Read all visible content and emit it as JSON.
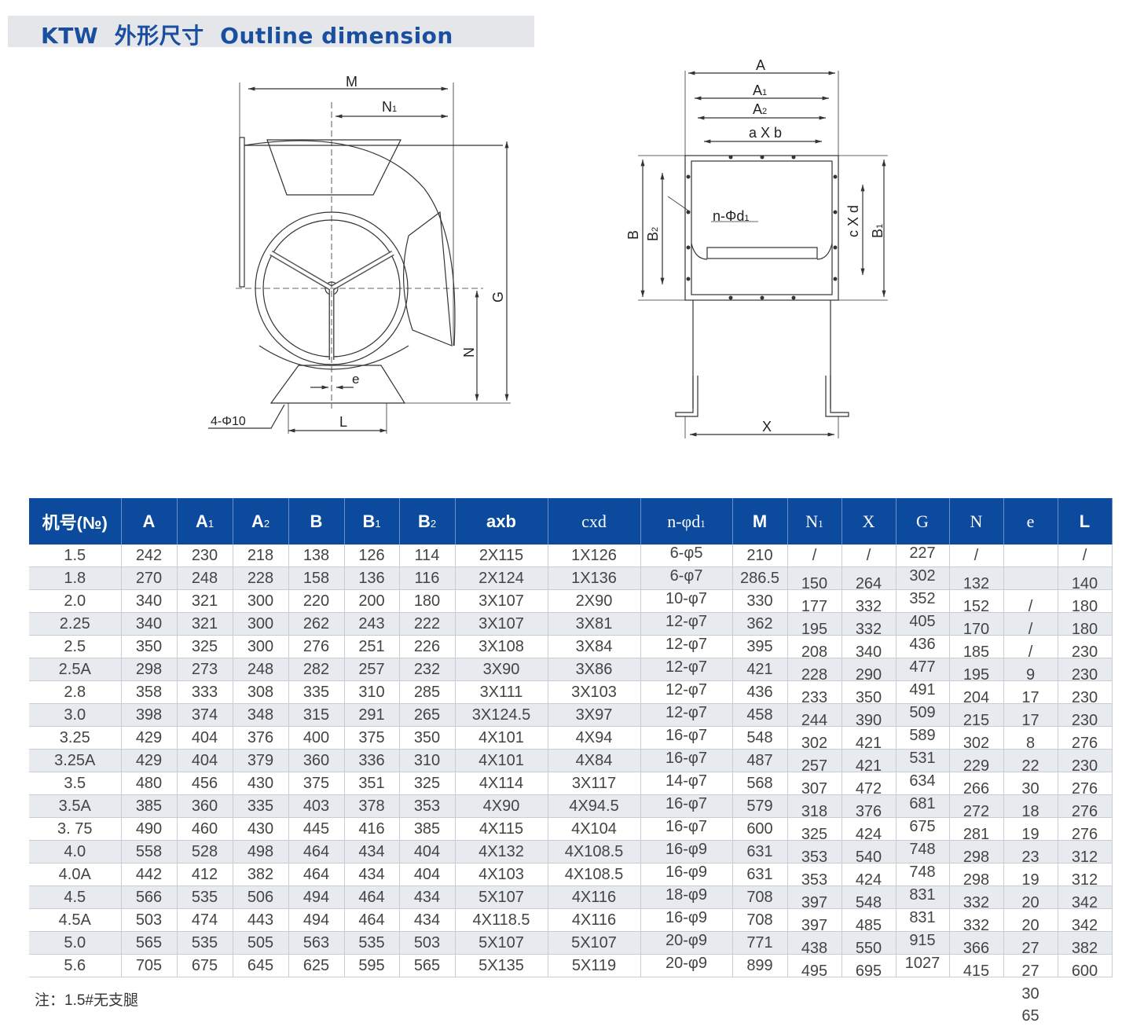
{
  "title": "KTW  外形尺寸  Outline dimension",
  "colors": {
    "accent": "#0b4a9c",
    "title_text": "#1a4fa0",
    "row_alt": "#e7eaee"
  },
  "side_view_labels": {
    "M": "M",
    "N1": "N",
    "N1_sub": "1",
    "G": "G",
    "N": "N",
    "e": "e",
    "L": "L",
    "holes": "4-Φ10"
  },
  "front_view_labels": {
    "A": "A",
    "A1": "A",
    "A1_sub": "1",
    "A2": "A",
    "A2_sub": "2",
    "axb": "a X b",
    "B": "B",
    "B2": "B",
    "B2_sub": "2",
    "cxd": "c X d",
    "B1": "B",
    "B1_sub": "1",
    "nd": "n-Φd",
    "nd_sub": "1",
    "X": "X"
  },
  "table": {
    "headers": [
      {
        "t": "机号(№)"
      },
      {
        "t": "A"
      },
      {
        "t": "A",
        "s": "1"
      },
      {
        "t": "A",
        "s": "2"
      },
      {
        "t": "B"
      },
      {
        "t": "B",
        "s": "1"
      },
      {
        "t": "B",
        "s": "2"
      },
      {
        "t": "axb"
      },
      {
        "t": "cxd",
        "serif": true
      },
      {
        "t": "n-φd",
        "s": "1",
        "serif": true
      },
      {
        "t": "M"
      },
      {
        "t": "N",
        "s": "1",
        "serif": true
      },
      {
        "t": "X",
        "serif": true
      },
      {
        "t": "G",
        "serif": true
      },
      {
        "t": "N",
        "serif": true
      },
      {
        "t": "e",
        "serif": true
      },
      {
        "t": "L"
      }
    ],
    "rows": [
      [
        "1.5",
        "242",
        "230",
        "218",
        "138",
        "126",
        "114",
        "2X115",
        "1X126",
        "6-φ5",
        "210",
        "/",
        "/",
        "227",
        "/",
        "",
        "/"
      ],
      [
        "1.8",
        "270",
        "248",
        "228",
        "158",
        "136",
        "116",
        "2X124",
        "1X136",
        "6-φ7",
        "286.5",
        "150",
        "264",
        "302",
        "132",
        "",
        "140"
      ],
      [
        "2.0",
        "340",
        "321",
        "300",
        "220",
        "200",
        "180",
        "3X107",
        "2X90",
        "10-φ7",
        "330",
        "177",
        "332",
        "352",
        "152",
        "/",
        "180"
      ],
      [
        "2.25",
        "340",
        "321",
        "300",
        "262",
        "243",
        "222",
        "3X107",
        "3X81",
        "12-φ7",
        "362",
        "195",
        "332",
        "405",
        "170",
        "/",
        "180"
      ],
      [
        "2.5",
        "350",
        "325",
        "300",
        "276",
        "251",
        "226",
        "3X108",
        "3X84",
        "12-φ7",
        "395",
        "208",
        "340",
        "436",
        "185",
        "/",
        "230"
      ],
      [
        "2.5A",
        "298",
        "273",
        "248",
        "282",
        "257",
        "232",
        "3X90",
        "3X86",
        "12-φ7",
        "421",
        "228",
        "290",
        "477",
        "195",
        "9",
        "230"
      ],
      [
        "2.8",
        "358",
        "333",
        "308",
        "335",
        "310",
        "285",
        "3X111",
        "3X103",
        "12-φ7",
        "436",
        "233",
        "350",
        "491",
        "204",
        "17",
        "230"
      ],
      [
        "3.0",
        "398",
        "374",
        "348",
        "315",
        "291",
        "265",
        "3X124.5",
        "3X97",
        "12-φ7",
        "458",
        "244",
        "390",
        "509",
        "215",
        "17",
        "230"
      ],
      [
        "3.25",
        "429",
        "404",
        "376",
        "400",
        "375",
        "350",
        "4X101",
        "4X94",
        "16-φ7",
        "548",
        "302",
        "421",
        "589",
        "302",
        "8",
        "276"
      ],
      [
        "3.25A",
        "429",
        "404",
        "379",
        "360",
        "336",
        "310",
        "4X101",
        "4X84",
        "16-φ7",
        "487",
        "257",
        "421",
        "531",
        "229",
        "22",
        "230"
      ],
      [
        "3.5",
        "480",
        "456",
        "430",
        "375",
        "351",
        "325",
        "4X114",
        "3X117",
        "14-φ7",
        "568",
        "307",
        "472",
        "634",
        "266",
        "30",
        "276"
      ],
      [
        "3.5A",
        "385",
        "360",
        "335",
        "403",
        "378",
        "353",
        "4X90",
        "4X94.5",
        "16-φ7",
        "579",
        "318",
        "376",
        "681",
        "272",
        "18",
        "276"
      ],
      [
        "3. 75",
        "490",
        "460",
        "430",
        "445",
        "416",
        "385",
        "4X115",
        "4X104",
        "16-φ7",
        "600",
        "325",
        "424",
        "675",
        "281",
        "19",
        "276"
      ],
      [
        "4.0",
        "558",
        "528",
        "498",
        "464",
        "434",
        "404",
        "4X132",
        "4X108.5",
        "16-φ9",
        "631",
        "353",
        "540",
        "748",
        "298",
        "23",
        "312"
      ],
      [
        "4.0A",
        "442",
        "412",
        "382",
        "464",
        "434",
        "404",
        "4X103",
        "4X108.5",
        "16-φ9",
        "631",
        "353",
        "424",
        "748",
        "298",
        "19",
        "312"
      ],
      [
        "4.5",
        "566",
        "535",
        "506",
        "494",
        "464",
        "434",
        "5X107",
        "4X116",
        "18-φ9",
        "708",
        "397",
        "548",
        "831",
        "332",
        "20",
        "342"
      ],
      [
        "4.5A",
        "503",
        "474",
        "443",
        "494",
        "464",
        "434",
        "4X118.5",
        "4X116",
        "16-φ9",
        "708",
        "397",
        "485",
        "831",
        "332",
        "20",
        "342"
      ],
      [
        "5.0",
        "565",
        "535",
        "505",
        "563",
        "535",
        "503",
        "5X107",
        "5X107",
        "20-φ9",
        "771",
        "438",
        "550",
        "915",
        "366",
        "27",
        "382"
      ],
      [
        "5.6",
        "705",
        "675",
        "645",
        "625",
        "595",
        "565",
        "5X135",
        "5X119",
        "20-φ9",
        "899",
        "495",
        "695",
        "1027",
        "415",
        "27",
        "600"
      ]
    ],
    "e_overflow": [
      "30",
      "65"
    ]
  },
  "note": "注：1.5#无支腿"
}
